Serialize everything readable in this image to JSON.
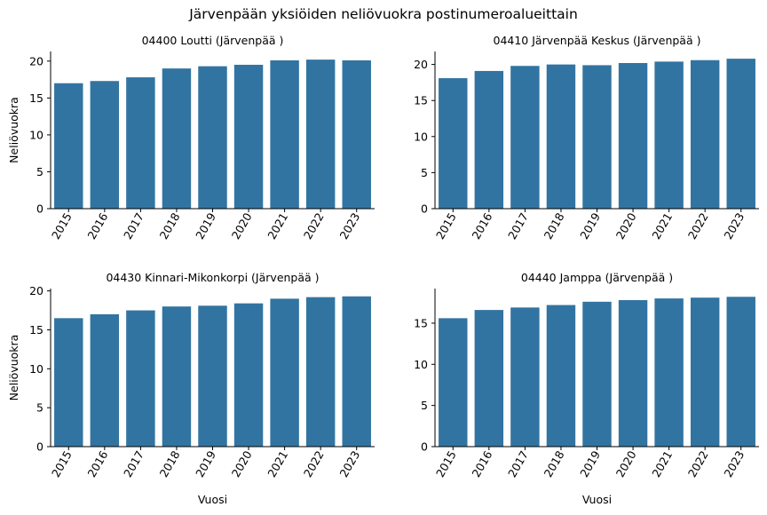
{
  "figure": {
    "title": "Järvenpään yksiöiden neliövuokra postinumeroalueittain"
  },
  "chart_data": [
    {
      "type": "bar",
      "title": "04400 Loutti   (Järvenpää )",
      "xlabel": "",
      "ylabel": "Neliövuokra",
      "categories": [
        "2015",
        "2016",
        "2017",
        "2018",
        "2019",
        "2020",
        "2021",
        "2022",
        "2023"
      ],
      "values": [
        17.0,
        17.3,
        17.8,
        19.0,
        19.3,
        19.5,
        20.1,
        20.2,
        20.1
      ],
      "ylim": [
        0,
        21.3
      ],
      "yticks": [
        0,
        5,
        10,
        15,
        20
      ],
      "color": "#3274a1",
      "grid": false
    },
    {
      "type": "bar",
      "title": "04410 Järvenpää Keskus   (Järvenpää )",
      "xlabel": "",
      "ylabel": "",
      "categories": [
        "2015",
        "2016",
        "2017",
        "2018",
        "2019",
        "2020",
        "2021",
        "2022",
        "2023"
      ],
      "values": [
        18.1,
        19.1,
        19.8,
        20.0,
        19.9,
        20.2,
        20.4,
        20.6,
        20.8
      ],
      "ylim": [
        0,
        21.8
      ],
      "yticks": [
        0,
        5,
        10,
        15,
        20
      ],
      "color": "#3274a1",
      "grid": false
    },
    {
      "type": "bar",
      "title": "04430 Kinnari-Mikonkorpi   (Järvenpää )",
      "xlabel": "Vuosi",
      "ylabel": "Neliövuokra",
      "categories": [
        "2015",
        "2016",
        "2017",
        "2018",
        "2019",
        "2020",
        "2021",
        "2022",
        "2023"
      ],
      "values": [
        16.5,
        17.0,
        17.5,
        18.0,
        18.1,
        18.4,
        19.0,
        19.2,
        19.3
      ],
      "ylim": [
        0,
        20.3
      ],
      "yticks": [
        0,
        5,
        10,
        15,
        20
      ],
      "color": "#3274a1",
      "grid": false
    },
    {
      "type": "bar",
      "title": "04440 Jamppa   (Järvenpää )",
      "xlabel": "Vuosi",
      "ylabel": "",
      "categories": [
        "2015",
        "2016",
        "2017",
        "2018",
        "2019",
        "2020",
        "2021",
        "2022",
        "2023"
      ],
      "values": [
        15.6,
        16.6,
        16.9,
        17.2,
        17.6,
        17.8,
        18.0,
        18.1,
        18.2
      ],
      "ylim": [
        0,
        19.2
      ],
      "yticks": [
        0,
        5,
        10,
        15
      ],
      "color": "#3274a1",
      "grid": false
    }
  ]
}
